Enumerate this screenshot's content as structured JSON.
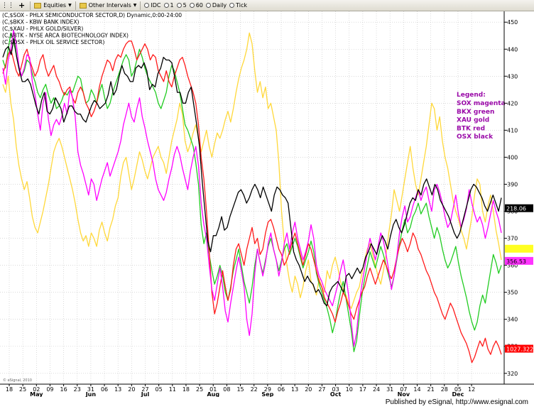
{
  "toolbar": {
    "equities_label": "Equities",
    "other_intervals_label": "Other Intervals",
    "idc_label": "IDC",
    "i1_label": "1",
    "i5_label": "5",
    "i60_label": "60",
    "daily_label": "Daily",
    "tick_label": "Tick"
  },
  "footer": {
    "published": "Published by eSignal, http://www.esignal.com"
  },
  "chart_data": {
    "type": "line",
    "symbol_lines": [
      "(C,$SOX - PHLX SEMICONDUCTOR SECTOR,D) Dynamic,0:00-24:00",
      "(C,$BKX - KBW BANK INDEX)",
      "(C,$XAU - PHLX GOLD/SILVER)",
      "(C,$BTK - NYSE ARCA BIOTECHNOLOGY INDEX)",
      "(C,$OSX - PHLX OIL SERVICE SECTOR)"
    ],
    "legend": {
      "placement": "right",
      "title": "Legend:",
      "entries": [
        "SOX magenta",
        "BKX green",
        "XAU gold",
        "BTK red",
        "OSX black"
      ],
      "color": "#9a0aa8"
    },
    "y_ticks": [
      320,
      330,
      340,
      350,
      360,
      370,
      380,
      390,
      400,
      410,
      420,
      430,
      440,
      450
    ],
    "ylim": [
      316,
      454
    ],
    "price_tags": [
      {
        "label": "218.06",
        "value": 381,
        "color": "#000000",
        "text_color": "#ffffff"
      },
      {
        "label": "-",
        "value": 366,
        "color": "#ffff22",
        "text_color": "#ffff22"
      },
      {
        "label": "356.53",
        "value": 361.5,
        "color": "#ff33ff",
        "text_color": "#000000"
      },
      {
        "label": "1027.3227",
        "value": 329,
        "color": "#ff0000",
        "text_color": "#ffffff"
      }
    ],
    "x_day_ticks": [
      "18",
      "25",
      "02",
      "09",
      "16",
      "23",
      "31",
      "06",
      "13",
      "20",
      "27",
      "05",
      "11",
      "18",
      "25",
      "01",
      "08",
      "15",
      "22",
      "29",
      "06",
      "13",
      "20",
      "27",
      "03",
      "10",
      "17",
      "24",
      "31",
      "07",
      "14",
      "21",
      "28",
      "05",
      "12"
    ],
    "x_month_labels": [
      {
        "label": "May",
        "at_tick": 2
      },
      {
        "label": "Jun",
        "at_tick": 6
      },
      {
        "label": "Jul",
        "at_tick": 10
      },
      {
        "label": "Aug",
        "at_tick": 15
      },
      {
        "label": "Sep",
        "at_tick": 19
      },
      {
        "label": "Oct",
        "at_tick": 24
      },
      {
        "label": "Nov",
        "at_tick": 29
      },
      {
        "label": "Dec",
        "at_tick": 33
      }
    ],
    "grid": true,
    "watermark": "© eSignal, 2010",
    "series": [
      {
        "name": "SOX",
        "color": "#ff00ff",
        "values": [
          433,
          427,
          436,
          440,
          447,
          442,
          434,
          430,
          433,
          438,
          437,
          428,
          423,
          416,
          410,
          420,
          424,
          414,
          408,
          412,
          414,
          412,
          415,
          420,
          416,
          425,
          422,
          415,
          402,
          397,
          394,
          390,
          386,
          392,
          390,
          384,
          388,
          392,
          395,
          398,
          393,
          396,
          399,
          402,
          406,
          412,
          416,
          420,
          415,
          413,
          418,
          422,
          415,
          411,
          406,
          402,
          398,
          392,
          388,
          386,
          384,
          387,
          392,
          396,
          401,
          404,
          401,
          396,
          392,
          388,
          395,
          400,
          404,
          397,
          383,
          375,
          370,
          360,
          351,
          347,
          353,
          359,
          352,
          343,
          339,
          346,
          352,
          358,
          363,
          358,
          352,
          340,
          334,
          342,
          357,
          366,
          361,
          356,
          361,
          368,
          372,
          366,
          362,
          356,
          361,
          368,
          372,
          366,
          372,
          376,
          370,
          366,
          362,
          365,
          369,
          375,
          370,
          360,
          356,
          354,
          351,
          349,
          347,
          345,
          349,
          353,
          358,
          362,
          356,
          349,
          339,
          330,
          335,
          346,
          353,
          359,
          365,
          370,
          366,
          362,
          367,
          372,
          369,
          364,
          358,
          351,
          356,
          363,
          372,
          378,
          382,
          376,
          378,
          382,
          385,
          388,
          384,
          387,
          389,
          384,
          380,
          388,
          390,
          387,
          383,
          378,
          374,
          376,
          381,
          386,
          379,
          374,
          377,
          381,
          388,
          383,
          379,
          376,
          378,
          375,
          370,
          374,
          379,
          384,
          380,
          377,
          372
        ]
      },
      {
        "name": "BKX",
        "color": "#22cc22",
        "values": [
          436,
          433,
          440,
          446,
          443,
          438,
          433,
          430,
          432,
          436,
          435,
          431,
          428,
          424,
          422,
          425,
          427,
          423,
          420,
          422,
          418,
          419,
          421,
          424,
          423,
          425,
          424,
          427,
          430,
          429,
          424,
          420,
          421,
          425,
          423,
          420,
          424,
          427,
          422,
          418,
          420,
          424,
          427,
          430,
          433,
          436,
          438,
          436,
          430,
          432,
          436,
          440,
          437,
          433,
          430,
          428,
          426,
          424,
          420,
          418,
          421,
          424,
          430,
          434,
          432,
          428,
          424,
          418,
          412,
          410,
          407,
          404,
          398,
          390,
          375,
          368,
          372,
          364,
          358,
          353,
          356,
          360,
          356,
          350,
          347,
          352,
          358,
          362,
          366,
          360,
          354,
          350,
          346,
          352,
          360,
          366,
          361,
          357,
          362,
          367,
          370,
          366,
          362,
          358,
          362,
          366,
          368,
          364,
          367,
          370,
          367,
          363,
          359,
          362,
          365,
          369,
          365,
          357,
          353,
          350,
          347,
          344,
          340,
          335,
          339,
          345,
          350,
          354,
          348,
          342,
          336,
          328,
          332,
          341,
          349,
          355,
          360,
          365,
          362,
          359,
          363,
          367,
          364,
          360,
          356,
          352,
          356,
          362,
          368,
          373,
          377,
          372,
          374,
          378,
          380,
          383,
          379,
          381,
          383,
          378,
          374,
          370,
          374,
          371,
          366,
          362,
          359,
          361,
          364,
          367,
          361,
          356,
          352,
          348,
          343,
          339,
          336,
          339,
          345,
          349,
          346,
          352,
          358,
          364,
          361,
          357,
          360
        ]
      },
      {
        "name": "XAU",
        "color": "#ffd83a",
        "values": [
          427,
          424,
          430,
          420,
          414,
          404,
          397,
          392,
          388,
          391,
          385,
          378,
          374,
          372,
          376,
          380,
          385,
          390,
          396,
          402,
          405,
          407,
          404,
          400,
          396,
          392,
          388,
          383,
          377,
          372,
          369,
          371,
          367,
          372,
          370,
          367,
          373,
          376,
          372,
          369,
          374,
          377,
          382,
          385,
          393,
          398,
          400,
          394,
          388,
          392,
          397,
          402,
          399,
          395,
          392,
          396,
          400,
          402,
          404,
          400,
          398,
          394,
          400,
          406,
          410,
          414,
          420,
          416,
          406,
          402,
          405,
          409,
          412,
          407,
          402,
          406,
          410,
          404,
          400,
          405,
          409,
          407,
          410,
          414,
          417,
          413,
          418,
          424,
          429,
          433,
          436,
          440,
          446,
          442,
          432,
          424,
          428,
          422,
          426,
          418,
          420,
          415,
          410,
          398,
          380,
          368,
          360,
          354,
          350,
          356,
          353,
          348,
          352,
          358,
          362,
          354,
          352,
          349,
          355,
          352,
          350,
          358,
          355,
          360,
          363,
          359,
          354,
          351,
          349,
          346,
          344,
          347,
          350,
          352,
          357,
          362,
          366,
          368,
          364,
          360,
          356,
          353,
          358,
          364,
          372,
          379,
          388,
          384,
          380,
          386,
          392,
          398,
          404,
          396,
          390,
          386,
          392,
          398,
          404,
          412,
          420,
          418,
          410,
          415,
          406,
          400,
          396,
          390,
          384,
          380,
          377,
          373,
          370,
          366,
          372,
          378,
          386,
          392,
          390,
          380,
          376,
          382,
          386,
          380,
          373,
          368,
          362
        ]
      },
      {
        "name": "BTK",
        "color": "#ff1a1a",
        "values": [
          431,
          434,
          438,
          440,
          436,
          432,
          430,
          434,
          438,
          440,
          436,
          433,
          430,
          432,
          436,
          438,
          433,
          430,
          432,
          434,
          430,
          428,
          425,
          423,
          425,
          426,
          422,
          420,
          424,
          426,
          424,
          420,
          418,
          415,
          417,
          420,
          426,
          430,
          433,
          436,
          435,
          432,
          436,
          438,
          437,
          440,
          442,
          443,
          443,
          440,
          436,
          438,
          440,
          442,
          440,
          436,
          438,
          437,
          432,
          430,
          428,
          432,
          428,
          426,
          430,
          433,
          436,
          437,
          434,
          430,
          427,
          424,
          420,
          412,
          400,
          392,
          380,
          365,
          350,
          342,
          346,
          352,
          358,
          352,
          347,
          351,
          360,
          366,
          368,
          364,
          360,
          366,
          370,
          374,
          368,
          370,
          364,
          366,
          372,
          376,
          377,
          374,
          370,
          366,
          364,
          360,
          362,
          365,
          369,
          372,
          368,
          364,
          360,
          364,
          368,
          366,
          362,
          358,
          354,
          352,
          348,
          346,
          344,
          342,
          339,
          343,
          346,
          350,
          348,
          345,
          342,
          340,
          344,
          347,
          350,
          352,
          356,
          359,
          356,
          353,
          356,
          359,
          362,
          360,
          357,
          355,
          358,
          363,
          367,
          370,
          368,
          365,
          368,
          372,
          370,
          366,
          364,
          361,
          358,
          356,
          353,
          350,
          348,
          345,
          342,
          340,
          343,
          346,
          344,
          341,
          338,
          335,
          333,
          331,
          328,
          324,
          326,
          329,
          332,
          330,
          333,
          329,
          327,
          330,
          332,
          330,
          327
        ]
      },
      {
        "name": "OSX",
        "color": "#000000",
        "values": [
          437,
          440,
          441,
          438,
          444,
          437,
          432,
          428,
          428,
          429,
          427,
          423,
          419,
          416,
          421,
          424,
          417,
          416,
          418,
          422,
          420,
          418,
          413,
          416,
          419,
          419,
          417,
          416,
          416,
          414,
          413,
          416,
          419,
          421,
          420,
          418,
          419,
          420,
          423,
          428,
          423,
          425,
          430,
          434,
          431,
          430,
          428,
          428,
          433,
          434,
          433,
          435,
          432,
          425,
          427,
          426,
          431,
          433,
          437,
          436,
          436,
          435,
          430,
          424,
          424,
          420,
          420,
          424,
          426,
          419,
          412,
          404,
          391,
          380,
          369,
          365,
          371,
          371,
          374,
          378,
          373,
          374,
          378,
          381,
          384,
          387,
          388,
          386,
          383,
          385,
          388,
          390,
          388,
          385,
          389,
          386,
          383,
          380,
          386,
          389,
          388,
          386,
          385,
          383,
          374,
          365,
          362,
          360,
          357,
          354,
          356,
          354,
          353,
          350,
          351,
          349,
          346,
          345,
          350,
          352,
          353,
          354,
          352,
          350,
          356,
          357,
          355,
          357,
          359,
          357,
          359,
          363,
          365,
          368,
          366,
          364,
          368,
          371,
          369,
          366,
          371,
          375,
          377,
          374,
          372,
          375,
          379,
          383,
          385,
          384,
          388,
          386,
          390,
          392,
          389,
          386,
          390,
          388,
          384,
          382,
          380,
          378,
          375,
          372,
          370,
          372,
          376,
          380,
          384,
          388,
          390,
          389,
          387,
          385,
          382,
          380,
          383,
          386,
          383,
          380,
          385
        ]
      }
    ]
  }
}
